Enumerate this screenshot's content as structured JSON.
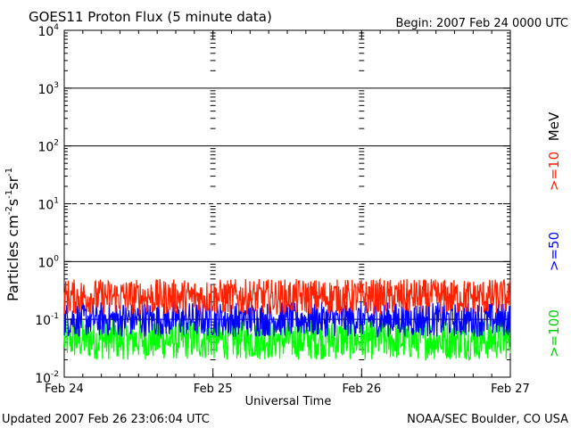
{
  "chart_data": {
    "type": "line",
    "title": "GOES11 Proton Flux (5 minute data)",
    "begin": "Begin: 2007 Feb 24 0000 UTC",
    "ylabel_base": "Particles cm",
    "ylabel_exp1": "-2",
    "ylabel_s": "s",
    "ylabel_exp2": "-1",
    "ylabel_sr": "sr",
    "ylabel_exp3": "-1",
    "xlabel": "Universal Time",
    "yscale": "log",
    "ylim": [
      0.01,
      10000
    ],
    "y_ticks": [
      {
        "base": "10",
        "exp": "4"
      },
      {
        "base": "10",
        "exp": "3"
      },
      {
        "base": "10",
        "exp": "2"
      },
      {
        "base": "10",
        "exp": "1"
      },
      {
        "base": "10",
        "exp": "0"
      },
      {
        "base": "10",
        "exp": "-1"
      },
      {
        "base": "10",
        "exp": "-2"
      }
    ],
    "x_ticks": [
      "Feb 24",
      "Feb 25",
      "Feb 26",
      "Feb 27"
    ],
    "grid": true,
    "series": [
      {
        "name": ">=10",
        "color": "#ff2000",
        "typical_range": [
          0.12,
          0.5
        ]
      },
      {
        "name": ">=50",
        "color": "#0000ff",
        "typical_range": [
          0.05,
          0.2
        ]
      },
      {
        "name": ">=100",
        "color": "#00ff00",
        "typical_range": [
          0.02,
          0.1
        ]
      }
    ],
    "unit_label": "MeV"
  },
  "footer": {
    "updated": "Updated 2007 Feb 26 23:06:04 UTC",
    "source": "NOAA/SEC Boulder, CO USA"
  }
}
